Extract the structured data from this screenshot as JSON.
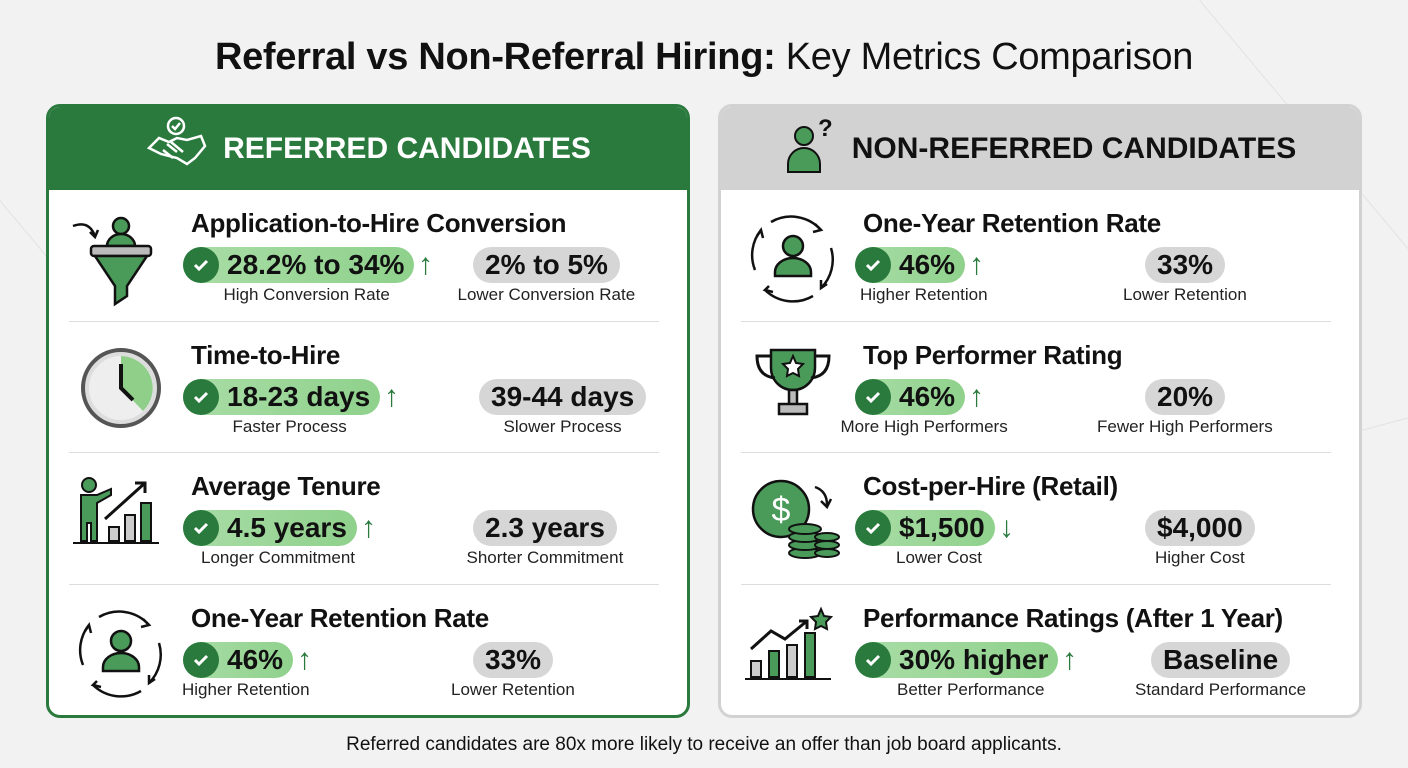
{
  "title": {
    "bold": "Referral vs Non-Referral Hiring:",
    "regular": " Key Metrics Comparison"
  },
  "colors": {
    "accent": "#2a7a3e",
    "good_pill": "#9fd89c",
    "neutral_pill": "#d6d6d6",
    "non_header": "#d2d2d2"
  },
  "panels": [
    {
      "id": "referred",
      "header": "REFERRED CANDIDATES",
      "header_icon": "handshake-check-icon",
      "rows": [
        {
          "icon": "funnel-person-icon",
          "title": "Application-to-Hire Conversion",
          "good_value": "28.2% to 34%",
          "trend": "up",
          "good_label": "High Conversion Rate",
          "bad_value": "2% to 5%",
          "bad_label": "Lower Conversion Rate"
        },
        {
          "icon": "clock-icon",
          "title": "Time-to-Hire",
          "good_value": "18-23 days",
          "trend": "up",
          "good_label": "Faster Process",
          "bad_value": "39-44 days",
          "bad_label": "Slower Process"
        },
        {
          "icon": "presenter-growth-chart-icon",
          "title": "Average Tenure",
          "good_value": "4.5 years",
          "trend": "up",
          "good_label": "Longer Commitment",
          "bad_value": "2.3 years",
          "bad_label": "Shorter Commitment"
        },
        {
          "icon": "person-cycle-icon",
          "title": "One-Year Retention Rate",
          "good_value": "46%",
          "trend": "up",
          "good_label": "Higher Retention",
          "bad_value": "33%",
          "bad_label": "Lower Retention"
        }
      ]
    },
    {
      "id": "non-referred",
      "header": "NON-REFERRED CANDIDATES",
      "header_icon": "person-question-icon",
      "rows": [
        {
          "icon": "person-cycle-icon",
          "title": "One-Year Retention Rate",
          "good_value": "46%",
          "trend": "up",
          "good_label": "Higher Retention",
          "bad_value": "33%",
          "bad_label": "Lower Retention"
        },
        {
          "icon": "trophy-star-icon",
          "title": "Top Performer Rating",
          "good_value": "46%",
          "trend": "up",
          "good_label": "More High Performers",
          "bad_value": "20%",
          "bad_label": "Fewer High Performers"
        },
        {
          "icon": "dollar-coins-icon",
          "title": "Cost-per-Hire (Retail)",
          "good_value": "$1,500",
          "trend": "down",
          "good_label": "Lower Cost",
          "bad_value": "$4,000",
          "bad_label": "Higher Cost"
        },
        {
          "icon": "growth-chart-star-icon",
          "title": "Performance Ratings (After 1 Year)",
          "good_value": "30% higher",
          "trend": "up",
          "good_label": "Better Performance",
          "bad_value": "Baseline",
          "bad_label": "Standard Performance"
        }
      ]
    }
  ],
  "footer": "Referred candidates are 80x more likely to receive an offer than job board applicants."
}
